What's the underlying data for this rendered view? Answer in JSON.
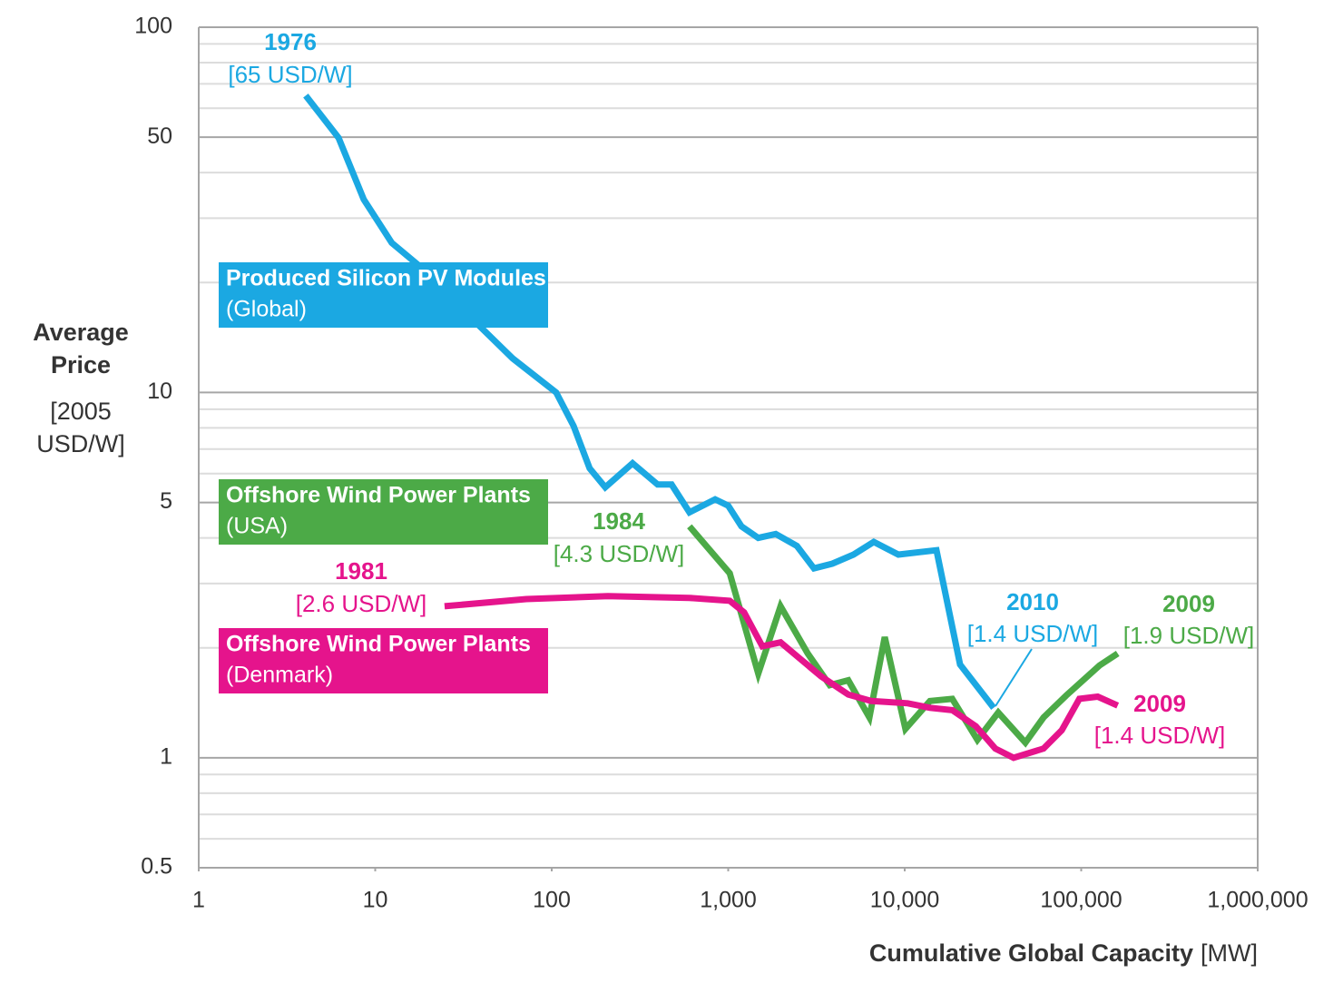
{
  "chart_data": {
    "type": "line",
    "ylabel": "Average Price",
    "ylabel_unit": "[2005 USD/W]",
    "xlabel": "Cumulative Global Capacity",
    "xlabel_unit": "[MW]",
    "xscale": "log",
    "yscale": "log",
    "xlim": [
      1,
      1000000
    ],
    "ylim": [
      0.5,
      100
    ],
    "xticks": [
      1,
      10,
      100,
      {
        "value": 1000,
        "label": "1,000"
      },
      {
        "value": 10000,
        "label": "10,000"
      },
      {
        "value": 100000,
        "label": "100,000"
      },
      {
        "value": 1000000,
        "label": "1,000,000"
      }
    ],
    "yticks": [
      0.5,
      1,
      5,
      10,
      50,
      100
    ],
    "yminor": [
      0.6,
      0.7,
      0.8,
      0.9,
      2,
      3,
      4,
      6,
      7,
      8,
      9,
      20,
      30,
      40,
      60,
      70,
      80,
      90
    ],
    "grid": true,
    "series": [
      {
        "name": "Produced Silicon PV Modules",
        "subname": "(Global)",
        "color": "#1ba8e2",
        "start_year": "1976",
        "start_price": "[65 USD/W]",
        "end_year": "2010",
        "end_price": "[1.4 USD/W]",
        "x": [
          4.04,
          6.2,
          8.6,
          12.4,
          19.5,
          35,
          60,
          106,
          133,
          164,
          201,
          287,
          398,
          478,
          603,
          843,
          1000,
          1188,
          1480,
          1860,
          2450,
          3060,
          3890,
          5130,
          6680,
          9200,
          15140,
          20600,
          31900
        ],
        "values": [
          65,
          49.8,
          33.8,
          25.7,
          21.4,
          16,
          12.4,
          10,
          8.1,
          6.2,
          5.5,
          6.4,
          5.6,
          5.6,
          4.7,
          5.1,
          4.9,
          4.3,
          4.0,
          4.1,
          3.8,
          3.3,
          3.4,
          3.6,
          3.9,
          3.6,
          3.7,
          1.8,
          1.37
        ]
      },
      {
        "name": "Offshore Wind Power Plants",
        "subname": "(USA)",
        "color": "#4caa47",
        "start_year": "1984",
        "start_price": "[4.3 USD/W]",
        "end_year": "2009",
        "end_price": "[1.9 USD/W]",
        "x": [
          603,
          1020,
          1480,
          1980,
          2820,
          3760,
          4790,
          6310,
          7710,
          10100,
          13900,
          18600,
          25800,
          33900,
          48300,
          61200,
          82200,
          127000,
          161000
        ],
        "values": [
          4.3,
          3.2,
          1.7,
          2.6,
          1.93,
          1.58,
          1.63,
          1.29,
          2.14,
          1.2,
          1.43,
          1.45,
          1.12,
          1.33,
          1.1,
          1.29,
          1.48,
          1.79,
          1.93
        ]
      },
      {
        "name": "Offshore Wind Power Plants",
        "subname": "(Denmark)",
        "color": "#e5148c",
        "start_year": "1981",
        "start_price": "[2.6 USD/W]",
        "end_year": "2009",
        "end_price": "[1.4 USD/W]",
        "x": [
          24.7,
          71.8,
          208,
          603,
          1020,
          1230,
          1560,
          1980,
          2510,
          3360,
          4790,
          6450,
          10400,
          13900,
          18600,
          25300,
          32600,
          41400,
          61200,
          77600,
          97700,
          124000,
          161000
        ],
        "values": [
          2.6,
          2.72,
          2.77,
          2.74,
          2.69,
          2.5,
          2.02,
          2.07,
          1.88,
          1.67,
          1.49,
          1.43,
          1.41,
          1.37,
          1.35,
          1.22,
          1.06,
          1.0,
          1.06,
          1.19,
          1.45,
          1.47,
          1.39
        ]
      }
    ]
  }
}
